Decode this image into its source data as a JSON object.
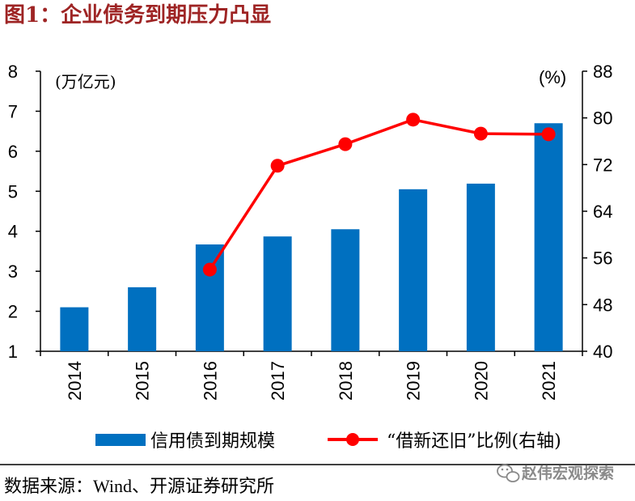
{
  "title": {
    "text": "图1：企业债务到期压力凸显"
  },
  "chart_data": {
    "type": "bar",
    "categories": [
      "2014",
      "2015",
      "2016",
      "2017",
      "2018",
      "2019",
      "2020",
      "2021"
    ],
    "series": [
      {
        "name": "信用债到期规模",
        "type": "bar",
        "axis": "left",
        "values": [
          2.1,
          2.6,
          3.67,
          3.87,
          4.05,
          5.05,
          5.19,
          6.7
        ]
      },
      {
        "name": "“借新还旧”比例(右轴)",
        "type": "line",
        "axis": "right",
        "values": [
          null,
          null,
          54.0,
          71.8,
          75.5,
          79.7,
          77.3,
          77.2
        ]
      }
    ],
    "y_left": {
      "unit": "(万亿元)",
      "range": [
        1,
        8
      ],
      "ticks": [
        1,
        2,
        3,
        4,
        5,
        6,
        7,
        8
      ]
    },
    "y_right": {
      "unit": "(%)",
      "range": [
        40,
        88
      ],
      "ticks": [
        40,
        48,
        56,
        64,
        72,
        80,
        88
      ]
    },
    "grid": false,
    "legend": "bottom",
    "colors": {
      "bar": "#0070C0",
      "line": "#FF0000"
    }
  },
  "source": "数据来源：Wind、开源证券研究所",
  "watermark": {
    "text": "赵伟宏观探索",
    "icon": "wechat-icon"
  },
  "colors": {
    "title": "#9E2424",
    "axis": "#000000",
    "watermark": "#8a8a8a"
  }
}
